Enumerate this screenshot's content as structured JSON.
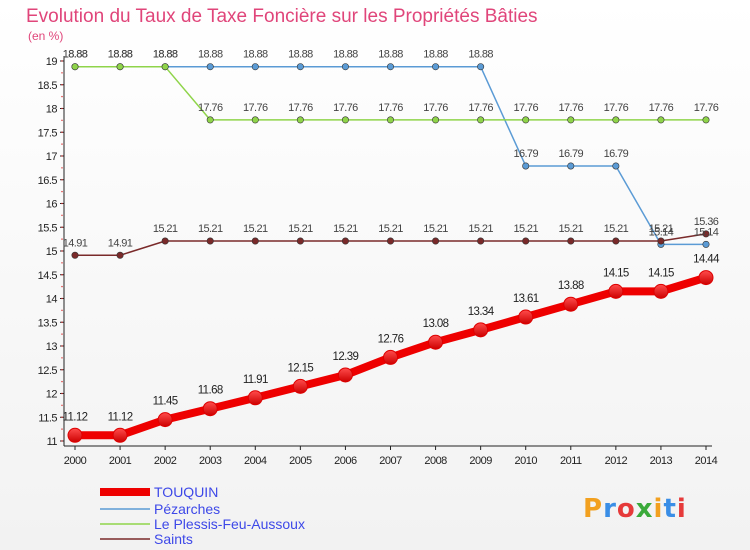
{
  "chart_data": {
    "type": "line",
    "title": "Evolution du Taux de Taxe Foncière sur les Propriétés Bâties",
    "subtitle": "(en %)",
    "x": [
      "2000",
      "2001",
      "2002",
      "2003",
      "2004",
      "2005",
      "2006",
      "2007",
      "2008",
      "2009",
      "2010",
      "2011",
      "2012",
      "2013",
      "2014"
    ],
    "ylim": [
      11,
      19
    ],
    "yticks": [
      "11",
      "11.5",
      "12",
      "12.5",
      "13",
      "13.5",
      "14",
      "14.5",
      "15",
      "15.5",
      "16",
      "16.5",
      "17",
      "17.5",
      "18",
      "18.5",
      "19"
    ],
    "grid": false,
    "legend_position": "bottom-left",
    "series": [
      {
        "name": "TOUQUIN",
        "color": "#ee0000",
        "values": [
          11.12,
          11.12,
          11.45,
          11.68,
          11.91,
          12.15,
          12.39,
          12.76,
          13.08,
          13.34,
          13.61,
          13.88,
          14.15,
          14.15,
          14.44
        ],
        "labels": [
          "11.12",
          "11.12",
          "11.45",
          "11.68",
          "11.91",
          "12.15",
          "12.39",
          "12.76",
          "13.08",
          "13.34",
          "13.61",
          "13.88",
          "14.15",
          "14.15",
          "14.44"
        ]
      },
      {
        "name": "Pézarches",
        "color": "#5b9bd5",
        "values": [
          18.88,
          18.88,
          18.88,
          18.88,
          18.88,
          18.88,
          18.88,
          18.88,
          18.88,
          18.88,
          16.79,
          16.79,
          16.79,
          15.14,
          15.14
        ],
        "labels": [
          "18.88",
          "18.88",
          "18.88",
          "18.88",
          "18.88",
          "18.88",
          "18.88",
          "18.88",
          "18.88",
          "18.88",
          "16.79",
          "16.79",
          "16.79",
          "15.14",
          "15.14"
        ]
      },
      {
        "name": "Le Plessis-Feu-Aussoux",
        "color": "#8fd44a",
        "values": [
          18.88,
          18.88,
          18.88,
          17.76,
          17.76,
          17.76,
          17.76,
          17.76,
          17.76,
          17.76,
          17.76,
          17.76,
          17.76,
          17.76,
          17.76
        ],
        "labels": [
          "18.88",
          "18.88",
          "18.88",
          "17.76",
          "17.76",
          "17.76",
          "17.76",
          "17.76",
          "17.76",
          "17.76",
          "17.76",
          "17.76",
          "17.76",
          "17.76",
          "17.76"
        ]
      },
      {
        "name": "Saints",
        "color": "#7a2a2a",
        "values": [
          14.91,
          14.91,
          15.21,
          15.21,
          15.21,
          15.21,
          15.21,
          15.21,
          15.21,
          15.21,
          15.21,
          15.21,
          15.21,
          15.21,
          15.36
        ],
        "labels": [
          "14.91",
          "14.91",
          "15.21",
          "15.21",
          "15.21",
          "15.21",
          "15.21",
          "15.21",
          "15.21",
          "15.21",
          "15.21",
          "15.21",
          "15.21",
          "15.21",
          "15.36"
        ]
      }
    ]
  },
  "branding": {
    "logo_text": "Proxiti"
  }
}
